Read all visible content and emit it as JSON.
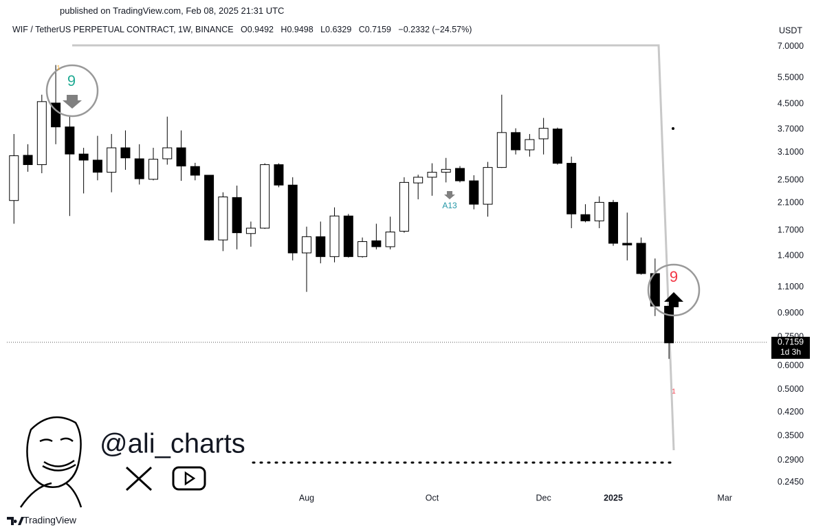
{
  "published": "published on TradingView.com, Feb 08, 2025 21:31 UTC",
  "header": {
    "symbol": "WIF / TetherUS PERPETUAL CONTRACT, 1W, BINANCE",
    "o": "O",
    "h": "H",
    "l": "L",
    "c": "C",
    "change": "−0.2332 (−24.57%)"
  },
  "watermark": "@ali_charts",
  "footer": "TradingView",
  "chart_data": {
    "type": "candlestick",
    "y_unit": "USDT",
    "countdown": "1d 3h",
    "log_scale": true,
    "up_color": "#ffffff",
    "down_color": "#000000",
    "open": [
      2.14,
      3.03,
      2.82,
      4.53,
      3.77,
      3.06,
      2.92,
      2.66,
      3.21,
      2.95,
      2.52,
      2.95,
      3.21,
      2.78,
      2.6,
      1.58,
      2.19,
      1.66,
      1.73,
      2.82,
      2.41,
      1.43,
      1.62,
      1.39,
      1.9,
      1.39,
      1.57,
      1.5,
      1.69,
      2.45,
      2.56,
      2.66,
      2.74,
      2.49,
      2.08,
      2.76,
      3.61,
      3.16,
      3.44,
      3.71,
      2.85,
      1.92,
      1.83,
      2.11,
      1.54,
      1.54,
      1.22,
      0.9492
    ],
    "high": [
      3.57,
      3.3,
      4.83,
      6.07,
      4.08,
      3.21,
      3.52,
      3.57,
      3.67,
      3.3,
      3.21,
      4.08,
      3.67,
      2.86,
      2.6,
      2.28,
      2.4,
      1.82,
      2.85,
      2.85,
      2.56,
      1.75,
      1.82,
      2.03,
      1.93,
      1.61,
      1.79,
      1.89,
      2.56,
      2.61,
      2.85,
      2.97,
      2.79,
      2.6,
      2.88,
      4.83,
      3.73,
      3.57,
      4.04,
      3.75,
      3.0,
      2.08,
      2.21,
      2.15,
      1.95,
      1.61,
      1.37,
      0.9498
    ],
    "low": [
      1.79,
      2.67,
      2.64,
      3.3,
      1.9,
      2.26,
      2.5,
      2.28,
      2.71,
      2.42,
      2.5,
      2.82,
      2.49,
      2.5,
      1.57,
      1.45,
      1.47,
      1.5,
      1.72,
      2.37,
      1.35,
      1.06,
      1.32,
      1.33,
      1.38,
      1.38,
      1.47,
      1.47,
      1.67,
      2.16,
      2.22,
      2.46,
      2.46,
      2.0,
      1.89,
      2.75,
      3.05,
      3.0,
      3.05,
      2.82,
      1.73,
      1.81,
      1.73,
      1.51,
      1.35,
      1.21,
      0.88,
      0.6329
    ],
    "close": [
      3.02,
      2.82,
      4.58,
      3.77,
      3.06,
      2.92,
      2.66,
      3.21,
      2.97,
      2.53,
      2.94,
      3.21,
      2.79,
      2.6,
      1.58,
      2.2,
      1.67,
      1.73,
      2.82,
      2.41,
      1.43,
      1.62,
      1.39,
      1.9,
      1.39,
      1.56,
      1.5,
      1.68,
      2.46,
      2.56,
      2.66,
      2.72,
      2.49,
      2.08,
      2.76,
      3.61,
      3.16,
      3.42,
      3.73,
      2.85,
      1.93,
      1.83,
      2.11,
      1.54,
      1.52,
      1.22,
      0.95,
      0.7159
    ],
    "xlim": [
      -1,
      54
    ],
    "xticks": [
      {
        "value": 21,
        "label": "Aug"
      },
      {
        "value": 30,
        "label": "Oct"
      },
      {
        "value": 38,
        "label": "Dec"
      },
      {
        "value": 43,
        "label": "2025",
        "bold": true
      },
      {
        "value": 51,
        "label": "Mar"
      }
    ],
    "ylim": [
      0.2,
      8.1
    ],
    "yticks": [
      {
        "value": 7,
        "label": "7.0000"
      },
      {
        "value": 5.5,
        "label": "5.5000"
      },
      {
        "value": 4.5,
        "label": "4.5000"
      },
      {
        "value": 3.7,
        "label": "3.7000"
      },
      {
        "value": 3.1,
        "label": "3.1000"
      },
      {
        "value": 2.5,
        "label": "2.5000"
      },
      {
        "value": 2.1,
        "label": "2.1000"
      },
      {
        "value": 1.7,
        "label": "1.7000"
      },
      {
        "value": 1.4,
        "label": "1.4000"
      },
      {
        "value": 1.1,
        "label": "1.1000"
      },
      {
        "value": 0.9,
        "label": "0.9000"
      },
      {
        "value": 0.75,
        "label": "0.7500"
      },
      {
        "value": 0.6,
        "label": "0.6000"
      },
      {
        "value": 0.5,
        "label": "0.5000"
      },
      {
        "value": 0.42,
        "label": "0.4200"
      },
      {
        "value": 0.35,
        "label": "0.3500"
      },
      {
        "value": 0.29,
        "label": "0.2900"
      },
      {
        "value": 0.245,
        "label": "0.2450"
      }
    ],
    "annotations": {
      "td_sell": "9",
      "td_buy": "9",
      "a13": "A13",
      "count_top": "1",
      "count_bottom": "1"
    }
  }
}
